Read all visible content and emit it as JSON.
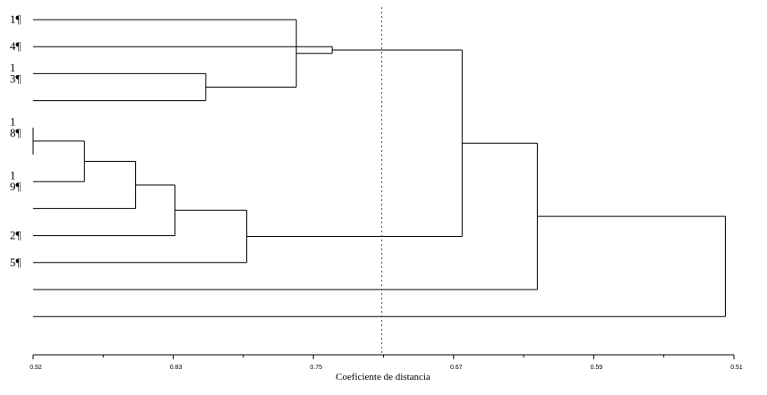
{
  "chart_data": {
    "type": "dendrogram",
    "orientation": "horizontal",
    "xlabel": "Coeficiente de distancia",
    "x_ticks": [
      "0.92",
      "0.83",
      "0.75",
      "0.67",
      "0.59",
      "0.51"
    ],
    "xlim": [
      0.92,
      0.51
    ],
    "cutoff_line": {
      "value": 0.716,
      "style": "dotted"
    },
    "leaves": [
      [
        "1¶"
      ],
      [
        "4¶"
      ],
      [
        "1",
        "3¶"
      ],
      [],
      [
        "1",
        "8¶"
      ],
      [],
      [
        "1",
        "9¶"
      ],
      [],
      [
        "2¶"
      ],
      [
        "5¶"
      ],
      [],
      []
    ],
    "merges": [
      {
        "left": "L4",
        "right": "L5",
        "height": 0.92,
        "id": "m1"
      },
      {
        "left": "m1",
        "right": "L6",
        "height": 0.89,
        "id": "m2"
      },
      {
        "left": "m2",
        "right": "L7",
        "height": 0.86,
        "id": "m3"
      },
      {
        "left": "m3",
        "right": "L8",
        "height": 0.837,
        "id": "m4"
      },
      {
        "left": "L2",
        "right": "L3",
        "height": 0.819,
        "id": "m5"
      },
      {
        "left": "m4",
        "right": "L9",
        "height": 0.795,
        "id": "m6"
      },
      {
        "left": "L0",
        "right": "m5",
        "height": 0.766,
        "id": "m7"
      },
      {
        "left": "L1",
        "right": "m7",
        "height": 0.745,
        "id": "m8"
      },
      {
        "left": "m8",
        "right": "m6",
        "height": 0.669,
        "id": "m9"
      },
      {
        "left": "m9",
        "right": "L10",
        "height": 0.625,
        "id": "m10"
      },
      {
        "left": "m10",
        "right": "L11",
        "height": 0.515,
        "id": "m11"
      }
    ]
  }
}
